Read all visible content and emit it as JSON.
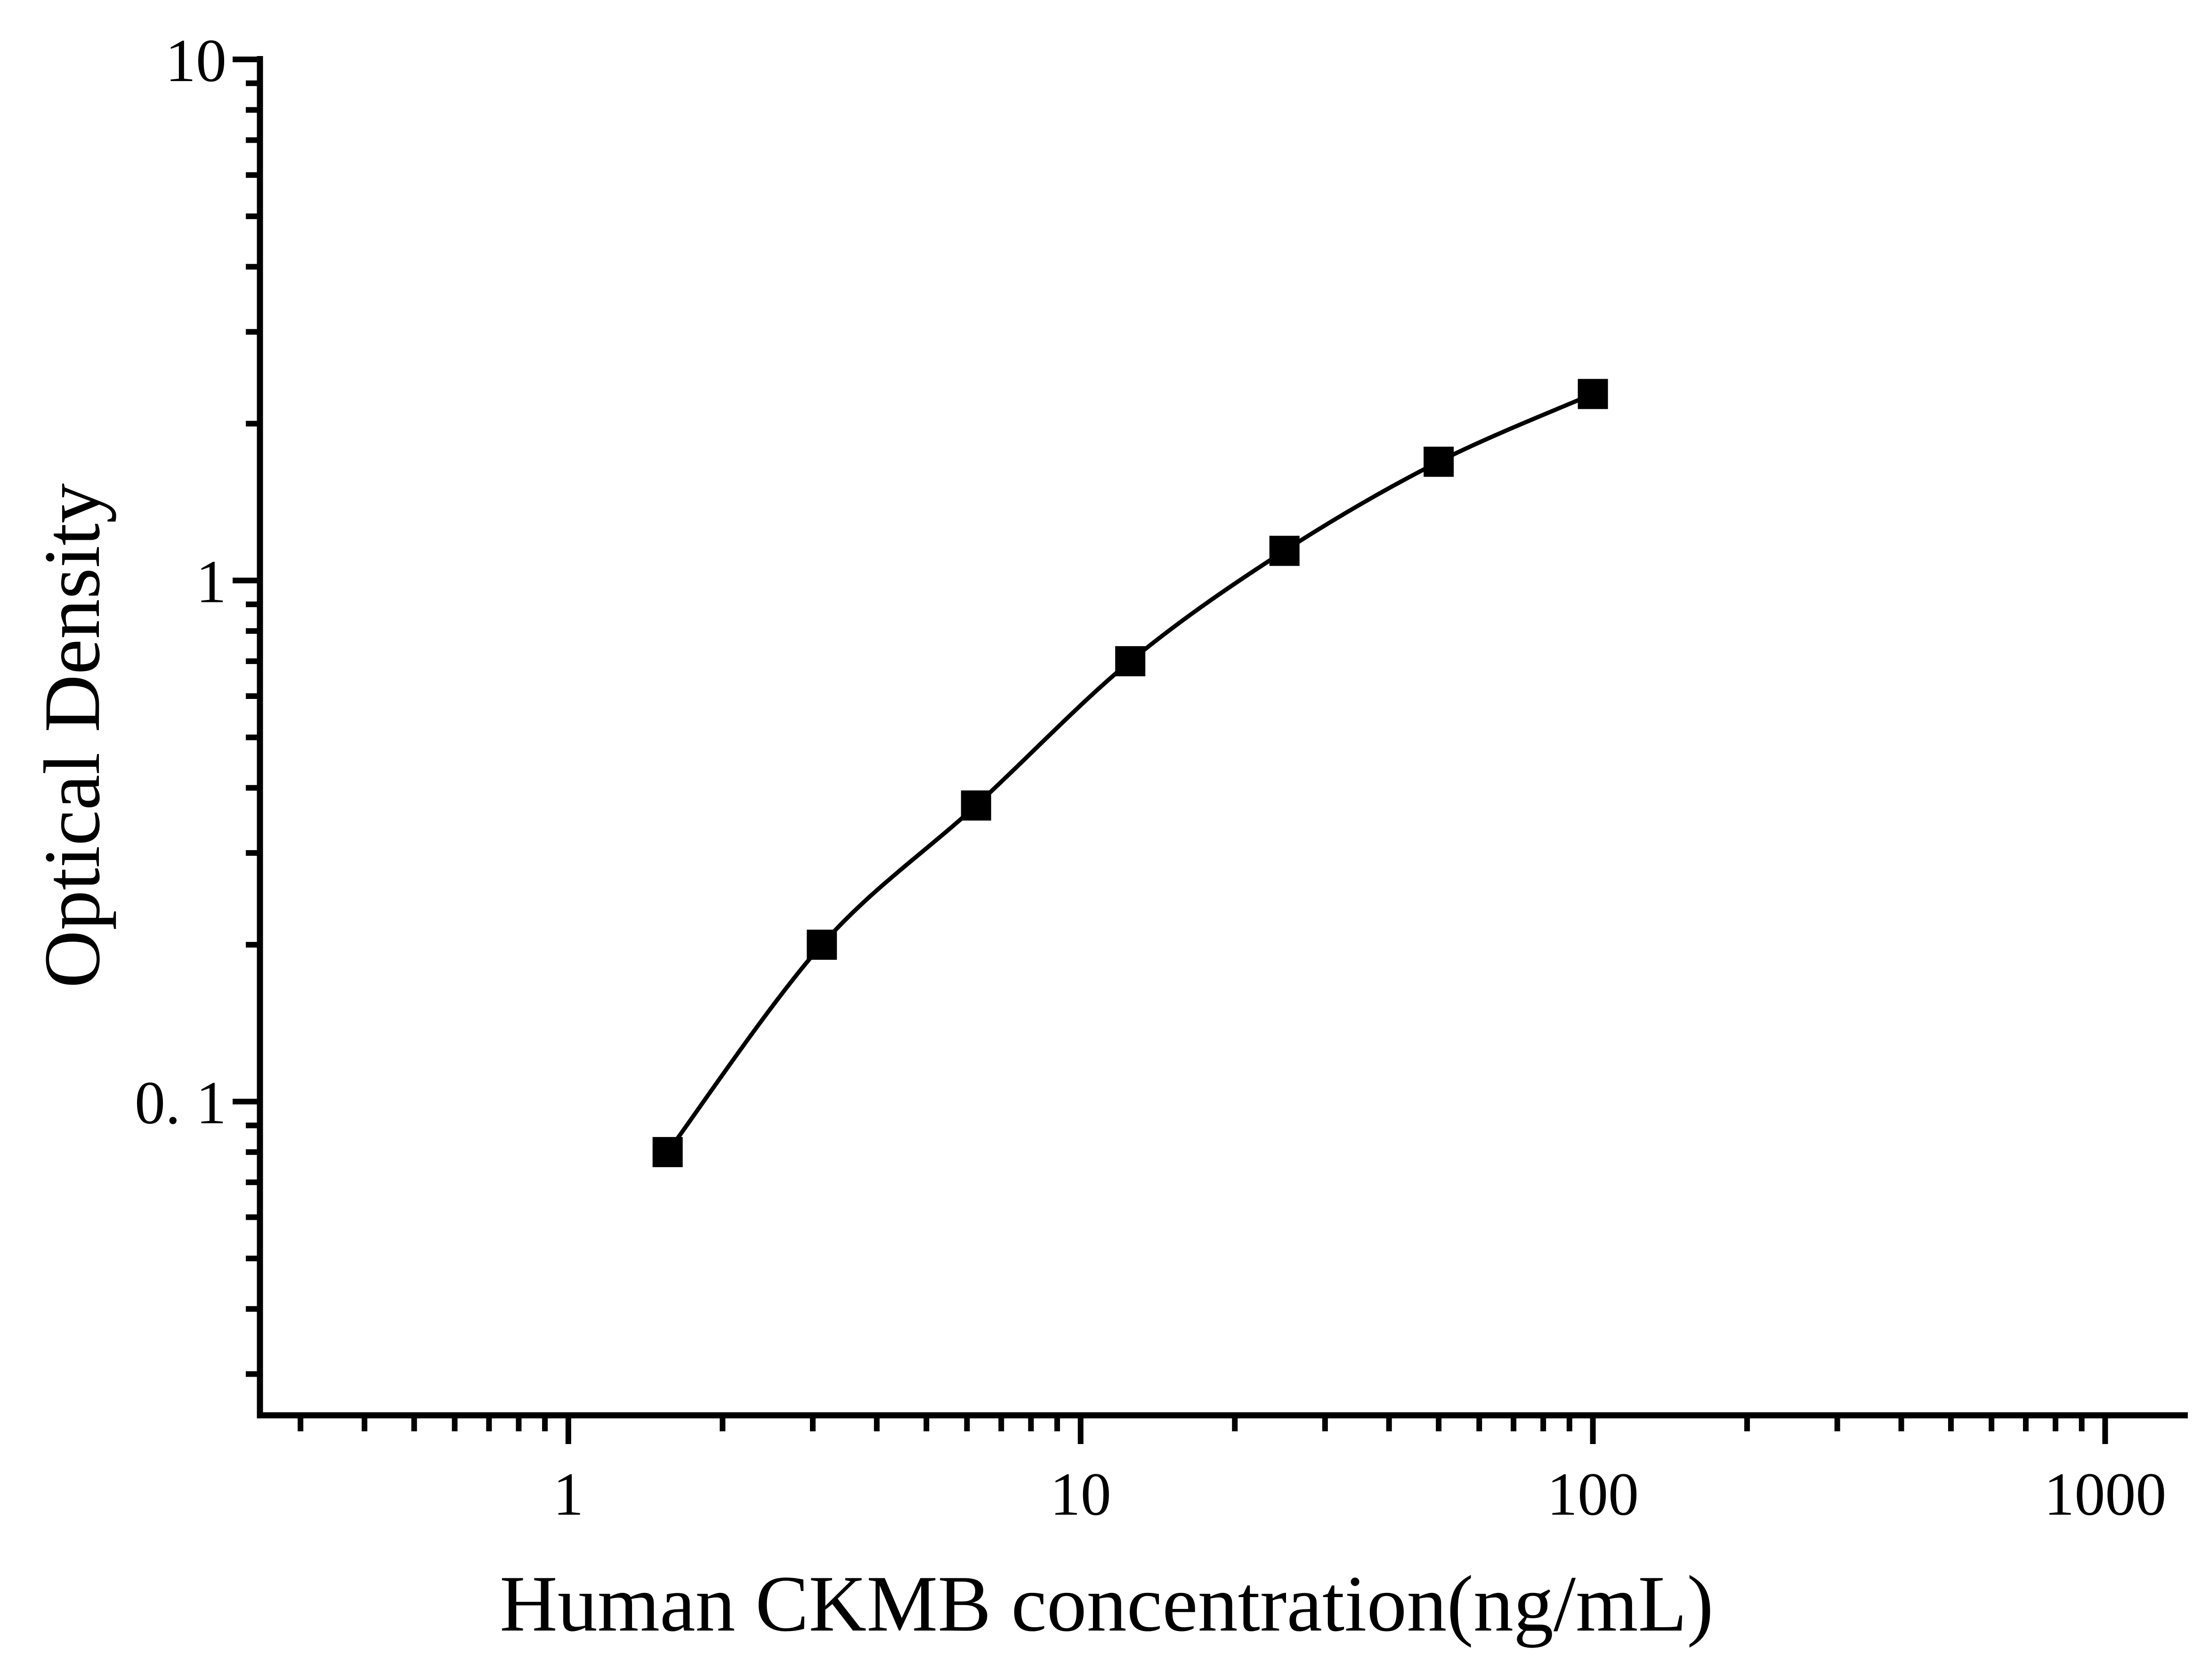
{
  "page": {
    "background": "#ffffff",
    "foreground": "#000000"
  },
  "chart_data": {
    "type": "line",
    "subtype": "elisa-standard-curve",
    "title": "",
    "xlabel": "Human CKMB concentration(ng/mL)",
    "ylabel": "Optical Density",
    "x_scale": "log",
    "y_scale": "log",
    "xlim": [
      0.25,
      1450
    ],
    "ylim": [
      0.025,
      10.15
    ],
    "grid": false,
    "legend_position": "none",
    "x_major_ticks": [
      {
        "value": 1,
        "label": "1"
      },
      {
        "value": 10,
        "label": "10"
      },
      {
        "value": 100,
        "label": "100"
      },
      {
        "value": 1000,
        "label": "1000"
      }
    ],
    "y_major_ticks": [
      {
        "value": 10,
        "label": "10"
      },
      {
        "value": 1,
        "label": "1"
      },
      {
        "value": 0.1,
        "label": "0. 1"
      }
    ],
    "series": [
      {
        "marker": "filled-square",
        "color": "#000000",
        "line": "smooth",
        "points": [
          {
            "x": 1.5625,
            "y": 0.08
          },
          {
            "x": 3.125,
            "y": 0.2
          },
          {
            "x": 6.25,
            "y": 0.37
          },
          {
            "x": 12.5,
            "y": 0.7
          },
          {
            "x": 25,
            "y": 1.14
          },
          {
            "x": 50,
            "y": 1.69
          },
          {
            "x": 100,
            "y": 2.28
          }
        ]
      }
    ]
  }
}
